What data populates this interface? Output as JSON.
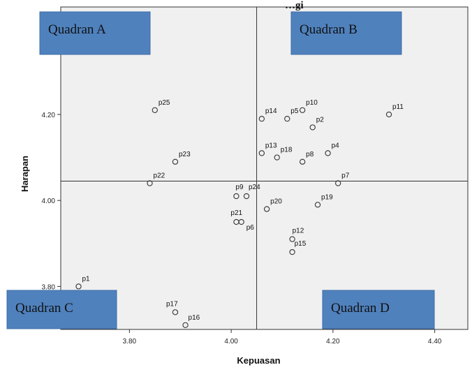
{
  "chart_data": {
    "type": "scatter",
    "title": "…gi",
    "xlabel": "Kepuasan",
    "ylabel": "Harapan",
    "xlim": [
      3.665,
      4.465
    ],
    "ylim": [
      3.7,
      4.45
    ],
    "x_ticks": [
      3.8,
      4.0,
      4.2,
      4.4
    ],
    "x_tick_labels": [
      "3.80",
      "4.00",
      "4.20",
      "4.40"
    ],
    "y_ticks": [
      3.8,
      4.0,
      4.2
    ],
    "y_tick_labels": [
      "3.80",
      "4.00",
      "4.20"
    ],
    "x_reference": 4.05,
    "y_reference": 4.045,
    "grid": false,
    "points": [
      {
        "label": "p1",
        "x": 3.7,
        "y": 3.8
      },
      {
        "label": "p2",
        "x": 4.16,
        "y": 4.17
      },
      {
        "label": "p4",
        "x": 4.19,
        "y": 4.11
      },
      {
        "label": "p5",
        "x": 4.11,
        "y": 4.19
      },
      {
        "label": "p6",
        "x": 4.02,
        "y": 3.95
      },
      {
        "label": "p7",
        "x": 4.21,
        "y": 4.04
      },
      {
        "label": "p8",
        "x": 4.14,
        "y": 4.09
      },
      {
        "label": "p9",
        "x": 4.01,
        "y": 4.01
      },
      {
        "label": "p10",
        "x": 4.14,
        "y": 4.21
      },
      {
        "label": "p11",
        "x": 4.31,
        "y": 4.2
      },
      {
        "label": "p12",
        "x": 4.12,
        "y": 3.91
      },
      {
        "label": "p13",
        "x": 4.06,
        "y": 4.11
      },
      {
        "label": "p14",
        "x": 4.06,
        "y": 4.19
      },
      {
        "label": "p15",
        "x": 4.12,
        "y": 3.88
      },
      {
        "label": "p16",
        "x": 3.91,
        "y": 3.71
      },
      {
        "label": "p17",
        "x": 3.89,
        "y": 3.74
      },
      {
        "label": "p18",
        "x": 4.09,
        "y": 4.1
      },
      {
        "label": "p19",
        "x": 4.17,
        "y": 3.99
      },
      {
        "label": "p20",
        "x": 4.07,
        "y": 3.98
      },
      {
        "label": "p21",
        "x": 4.01,
        "y": 3.95
      },
      {
        "label": "p22",
        "x": 3.84,
        "y": 4.04
      },
      {
        "label": "p23",
        "x": 3.89,
        "y": 4.09
      },
      {
        "label": "p24",
        "x": 4.03,
        "y": 4.01
      },
      {
        "label": "p25",
        "x": 3.85,
        "y": 4.21
      }
    ],
    "quadrant_labels": [
      "Quadran A",
      "Quadran B",
      "Quadran C",
      "Quadran D"
    ]
  },
  "colors": {
    "plot_background": "#f0f0f0",
    "quadrant_box": "#4f81bd",
    "quadrant_box_border": "#3d6da6",
    "axis": "#333333",
    "marker_stroke": "#333333"
  }
}
